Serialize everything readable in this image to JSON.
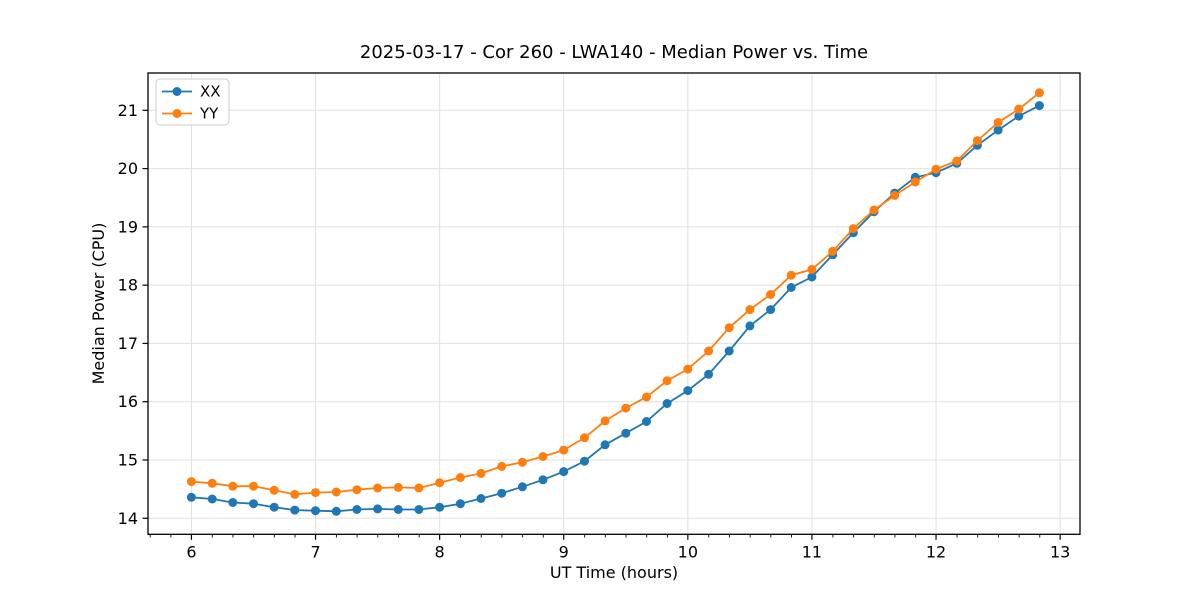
{
  "chart_data": {
    "type": "line",
    "title": "2025-03-17 - Cor 260 - LWA140 - Median Power vs. Time",
    "xlabel": "UT Time (hours)",
    "ylabel": "Median Power (CPU)",
    "grid": true,
    "legend_position": "upper left",
    "axes": {
      "xlim": [
        5.65,
        13.16
      ],
      "ylim": [
        13.725,
        21.64
      ],
      "xticks": [
        6,
        7,
        8,
        9,
        10,
        11,
        12,
        13
      ],
      "yticks": [
        14,
        15,
        16,
        17,
        18,
        19,
        20,
        21
      ],
      "x_minor_step": 0.1667
    },
    "x": [
      6,
      6.167,
      6.333,
      6.5,
      6.667,
      6.833,
      7,
      7.167,
      7.333,
      7.5,
      7.667,
      7.833,
      8,
      8.167,
      8.333,
      8.5,
      8.667,
      8.833,
      9,
      9.167,
      9.333,
      9.5,
      9.667,
      9.833,
      10,
      10.167,
      10.333,
      10.5,
      10.667,
      10.833,
      11,
      11.167,
      11.333,
      11.5,
      11.667,
      11.833,
      12,
      12.167,
      12.333,
      12.5,
      12.667,
      12.833
    ],
    "series": [
      {
        "name": "XX",
        "color": "#1f77b4",
        "marker": "circle",
        "values": [
          14.36,
          14.33,
          14.27,
          14.25,
          14.19,
          14.14,
          14.13,
          14.12,
          14.15,
          14.16,
          14.15,
          14.15,
          14.19,
          14.25,
          14.34,
          14.43,
          14.54,
          14.66,
          14.8,
          14.98,
          15.26,
          15.46,
          15.66,
          15.97,
          16.19,
          16.47,
          16.87,
          17.3,
          17.58,
          17.96,
          18.14,
          18.52,
          18.9,
          19.26,
          19.58,
          19.85,
          19.93,
          20.09,
          20.4,
          20.66,
          20.9,
          21.08
        ]
      },
      {
        "name": "YY",
        "color": "#ff7f0e",
        "marker": "circle",
        "values": [
          14.63,
          14.6,
          14.55,
          14.55,
          14.48,
          14.41,
          14.44,
          14.45,
          14.49,
          14.52,
          14.53,
          14.52,
          14.61,
          14.7,
          14.77,
          14.89,
          14.96,
          15.06,
          15.17,
          15.38,
          15.67,
          15.89,
          16.08,
          16.36,
          16.56,
          16.87,
          17.27,
          17.58,
          17.84,
          18.17,
          18.27,
          18.58,
          18.97,
          19.29,
          19.54,
          19.77,
          19.99,
          20.13,
          20.48,
          20.79,
          21.02,
          21.3
        ]
      }
    ],
    "style": {
      "grid_color": "#e0e0e0",
      "spine_color": "#000000",
      "background": "#ffffff",
      "legend_border": "#cccccc"
    }
  }
}
